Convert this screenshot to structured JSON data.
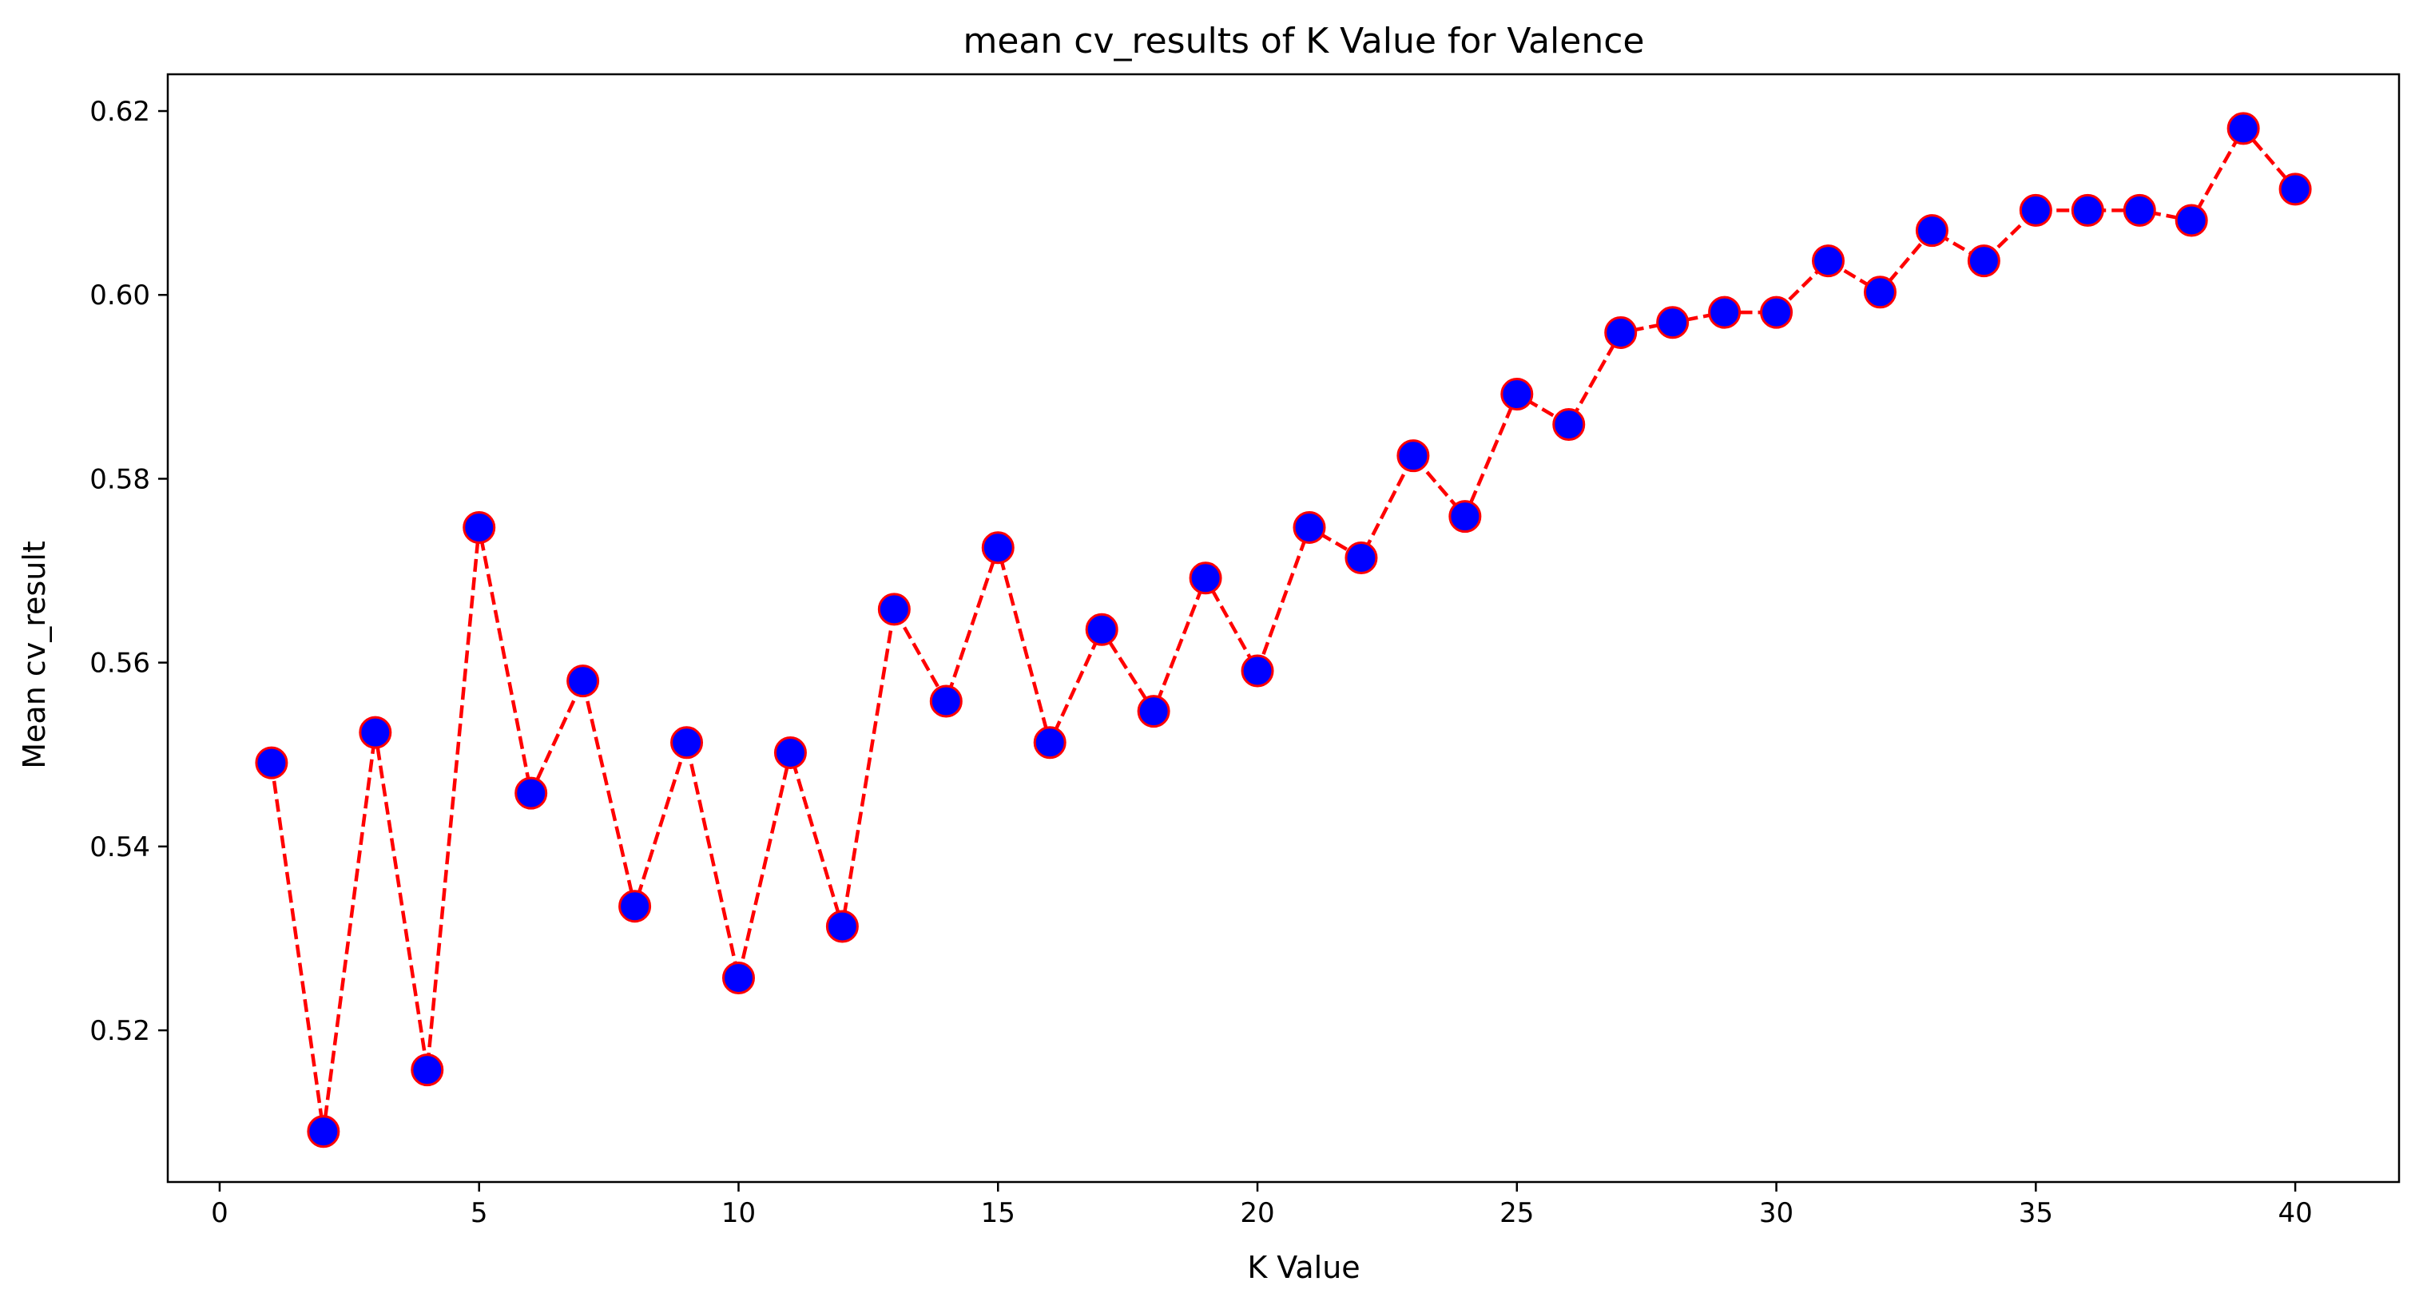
{
  "chart_data": {
    "type": "line",
    "title": "mean cv_results of  K Value for Valence",
    "xlabel": "K Value",
    "ylabel": "Mean cv_result",
    "xlim": [
      -1,
      42
    ],
    "ylim": [
      0.5035,
      0.624
    ],
    "xticks": [
      0,
      5,
      10,
      15,
      20,
      25,
      30,
      35,
      40
    ],
    "xtick_labels": [
      "0",
      "5",
      "10",
      "15",
      "20",
      "25",
      "30",
      "35",
      "40"
    ],
    "yticks": [
      0.52,
      0.54,
      0.56,
      0.58,
      0.6,
      0.62
    ],
    "ytick_labels": [
      "0.52",
      "0.54",
      "0.56",
      "0.58",
      "0.60",
      "0.62"
    ],
    "grid": false,
    "legend": "none",
    "series": [
      {
        "line_color": "#ff0000",
        "line_style": "dashed",
        "marker": "circle",
        "marker_face_color": "#0000ff",
        "marker_edge_color": "#ff0000",
        "x": [
          1,
          2,
          3,
          4,
          5,
          6,
          7,
          8,
          9,
          10,
          11,
          12,
          13,
          14,
          15,
          16,
          17,
          18,
          19,
          20,
          21,
          22,
          23,
          24,
          25,
          26,
          27,
          28,
          29,
          30,
          31,
          32,
          33,
          34,
          35,
          36,
          37,
          38,
          39,
          40
        ],
        "y": [
          0.5491,
          0.509,
          0.5524,
          0.5157,
          0.5747,
          0.5458,
          0.558,
          0.5335,
          0.5513,
          0.5257,
          0.5502,
          0.5313,
          0.5658,
          0.5558,
          0.5725,
          0.5513,
          0.5636,
          0.5547,
          0.5692,
          0.5591,
          0.5747,
          0.5714,
          0.5825,
          0.5759,
          0.5892,
          0.5859,
          0.5959,
          0.597,
          0.5981,
          0.5981,
          0.6037,
          0.6003,
          0.607,
          0.6037,
          0.6092,
          0.6092,
          0.6092,
          0.6081,
          0.6181,
          0.6115
        ]
      }
    ]
  }
}
